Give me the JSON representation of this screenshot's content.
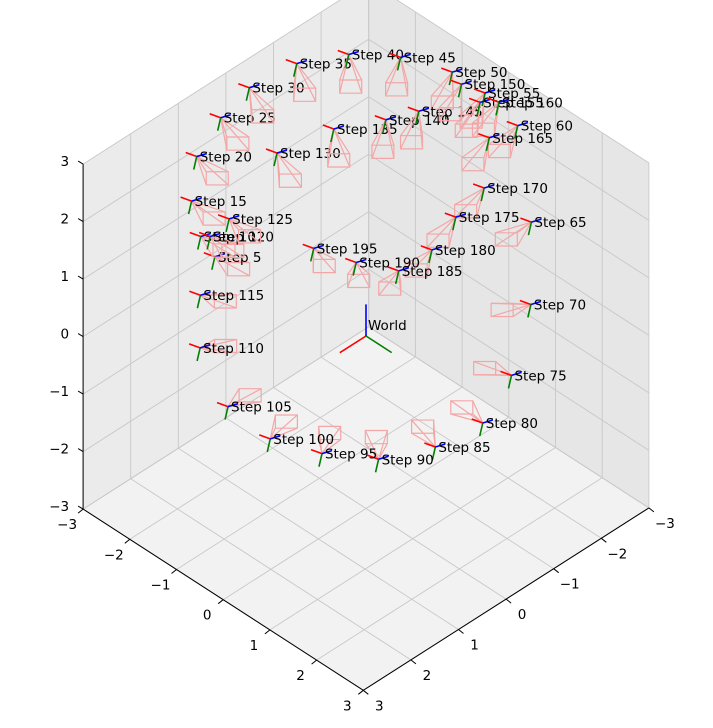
{
  "chart_data": {
    "type": "scatter",
    "projection": "3d",
    "title": "",
    "xlabel": "",
    "ylabel": "",
    "zlabel": "",
    "xlim": [
      -3,
      3
    ],
    "ylim": [
      -3,
      3
    ],
    "zlim": [
      -3,
      3
    ],
    "view": {
      "elev": 30,
      "azim": 45
    },
    "grid": true,
    "axis_ticks": {
      "x": [
        "−3",
        "−2",
        "−1",
        "0",
        "1",
        "2",
        "3"
      ],
      "y": [
        "−3",
        "−2",
        "−1",
        "0",
        "1",
        "2",
        "3"
      ],
      "z": [
        "−3",
        "−2",
        "−1",
        "0",
        "1",
        "2",
        "3"
      ]
    },
    "world_label": "World",
    "colors": {
      "axis_x": "#ff0000",
      "axis_y": "#008000",
      "axis_z": "#0000ff",
      "camera_frustum": "#f4a6a6",
      "pane_left": "#ebebeb",
      "pane_right": "#e6e6e6",
      "pane_floor": "#f2f2f2",
      "grid": "#c8c8c8"
    },
    "poses": [
      {
        "label": "Step 5",
        "x": 1.9,
        "y": -1.3,
        "z": 1.7
      },
      {
        "label": "Step 10",
        "x": 2.0,
        "y": -1.5,
        "z": 2.0
      },
      {
        "label": "Step 15",
        "x": 1.8,
        "y": -1.9,
        "z": 2.3
      },
      {
        "label": "Step 20",
        "x": 1.3,
        "y": -2.3,
        "z": 2.6
      },
      {
        "label": "Step 25",
        "x": 0.6,
        "y": -2.5,
        "z": 2.8
      },
      {
        "label": "Step 30",
        "x": -0.1,
        "y": -2.6,
        "z": 2.9
      },
      {
        "label": "Step 35",
        "x": -0.9,
        "y": -2.4,
        "z": 3.0
      },
      {
        "label": "Step 40",
        "x": -1.6,
        "y": -2.0,
        "z": 3.0
      },
      {
        "label": "Step 45",
        "x": -2.1,
        "y": -1.4,
        "z": 3.0
      },
      {
        "label": "Step 50",
        "x": -2.5,
        "y": -0.7,
        "z": 2.9
      },
      {
        "label": "Step 55",
        "x": -2.6,
        "y": -0.1,
        "z": 2.8
      },
      {
        "label": "Step 60",
        "x": -2.6,
        "y": 0.6,
        "z": 2.6
      },
      {
        "label": "Step 65",
        "x": -2.2,
        "y": 1.3,
        "z": 1.5
      },
      {
        "label": "Step 70",
        "x": -1.6,
        "y": 1.9,
        "z": 0.7
      },
      {
        "label": "Step 75",
        "x": -0.8,
        "y": 2.3,
        "z": 0.1
      },
      {
        "label": "Step 80",
        "x": 0.0,
        "y": 2.5,
        "z": -0.2
      },
      {
        "label": "Step 85",
        "x": 0.8,
        "y": 2.3,
        "z": -0.3
      },
      {
        "label": "Step 90",
        "x": 1.6,
        "y": 1.9,
        "z": -0.3
      },
      {
        "label": "Step 95",
        "x": 2.2,
        "y": 1.3,
        "z": -0.2
      },
      {
        "label": "Step 100",
        "x": 2.6,
        "y": 0.6,
        "z": -0.1
      },
      {
        "label": "Step 105",
        "x": 2.8,
        "y": -0.1,
        "z": 0.2
      },
      {
        "label": "Step 110",
        "x": 2.7,
        "y": -0.8,
        "z": 0.8
      },
      {
        "label": "Step 115",
        "x": 2.4,
        "y": -1.1,
        "z": 1.4
      },
      {
        "label": "Step 120",
        "x": 1.9,
        "y": -1.4,
        "z": 2.0
      },
      {
        "label": "Step 125",
        "x": 1.6,
        "y": -1.3,
        "z": 2.2
      },
      {
        "label": "Step 130",
        "x": 0.3,
        "y": -1.6,
        "z": 2.5
      },
      {
        "label": "Step 135",
        "x": -0.6,
        "y": -1.3,
        "z": 2.6
      },
      {
        "label": "Step 140",
        "x": -1.3,
        "y": -0.9,
        "z": 2.6
      },
      {
        "label": "Step 145",
        "x": -1.6,
        "y": -0.5,
        "z": 2.8
      },
      {
        "label": "Step 150",
        "x": -2.4,
        "y": -0.4,
        "z": 2.9
      },
      {
        "label": "Step 155",
        "x": -2.3,
        "y": 0.1,
        "z": 2.9
      },
      {
        "label": "Step 160",
        "x": -2.5,
        "y": 0.3,
        "z": 2.9
      },
      {
        "label": "Step 165",
        "x": -2.1,
        "y": 0.5,
        "z": 2.6
      },
      {
        "label": "Step 170",
        "x": -1.6,
        "y": 0.9,
        "z": 2.2
      },
      {
        "label": "Step 175",
        "x": -1.2,
        "y": 0.7,
        "z": 1.8
      },
      {
        "label": "Step 180",
        "x": -0.6,
        "y": 0.8,
        "z": 1.6
      },
      {
        "label": "Step 185",
        "x": 0.0,
        "y": 0.7,
        "z": 1.5
      },
      {
        "label": "Step 190",
        "x": 0.5,
        "y": 0.3,
        "z": 1.7
      },
      {
        "label": "Step 195",
        "x": 1.0,
        "y": -0.1,
        "z": 2.0
      }
    ]
  }
}
